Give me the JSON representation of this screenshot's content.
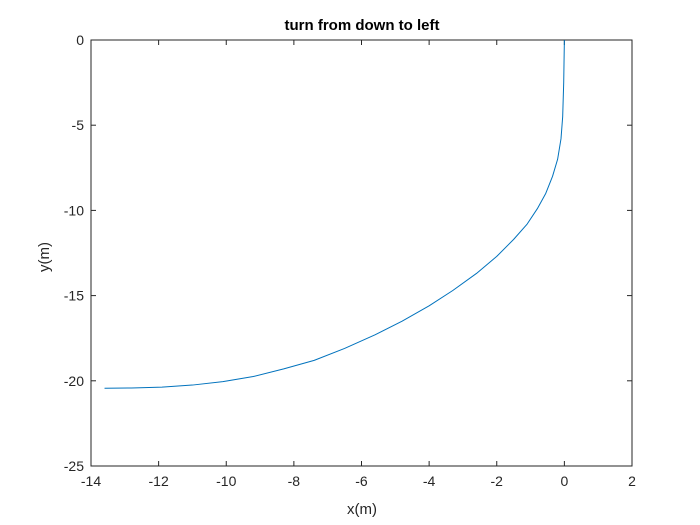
{
  "chart_data": {
    "type": "line",
    "title": "turn from down to left",
    "xlabel": "x(m)",
    "ylabel": "y(m)",
    "xlim": [
      -14,
      2
    ],
    "ylim": [
      -25,
      0
    ],
    "xticks": [
      -14,
      -12,
      -10,
      -8,
      -6,
      -4,
      -2,
      0,
      2
    ],
    "yticks": [
      0,
      -5,
      -10,
      -15,
      -20,
      -25
    ],
    "xtick_labels": [
      "-14",
      "-12",
      "-10",
      "-8",
      "-6",
      "-4",
      "-2",
      "0",
      "2"
    ],
    "ytick_labels": [
      "0",
      "-5",
      "-10",
      "-15",
      "-20",
      "-25"
    ],
    "grid": false,
    "line_color": "#0072BD",
    "series": [
      {
        "x": [
          0.0,
          -0.02,
          -0.05,
          -0.1,
          -0.2,
          -0.35,
          -0.55,
          -0.8,
          -1.1,
          -1.5,
          -2.0,
          -2.6,
          -3.3,
          -4.0,
          -4.8,
          -5.6,
          -6.5,
          -7.4,
          -8.3,
          -9.2,
          -10.1,
          -11.0,
          -11.9,
          -12.8,
          -13.6
        ],
        "y": [
          0.0,
          -2.5,
          -4.5,
          -5.8,
          -7.0,
          -8.0,
          -9.0,
          -9.9,
          -10.8,
          -11.7,
          -12.7,
          -13.7,
          -14.7,
          -15.6,
          -16.5,
          -17.3,
          -18.1,
          -18.8,
          -19.3,
          -19.75,
          -20.05,
          -20.25,
          -20.37,
          -20.42,
          -20.44
        ]
      }
    ]
  }
}
